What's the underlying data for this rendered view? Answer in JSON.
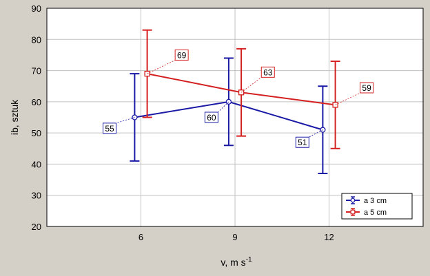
{
  "chart_data": {
    "type": "line",
    "x": [
      6,
      9,
      12
    ],
    "xlabel": "v, m s",
    "xlabel_sup": "-1",
    "ylabel": "ib, sztuk",
    "xlim": [
      3,
      15
    ],
    "ylim": [
      20,
      90
    ],
    "xticks": [
      6,
      9,
      12
    ],
    "yticks": [
      20,
      30,
      40,
      50,
      60,
      70,
      80,
      90
    ],
    "grid": true,
    "legend_position": "bottom-right",
    "series": [
      {
        "name": "a        3 cm",
        "color": "#1a1aa6",
        "marker": "circle",
        "x": [
          5.8,
          8.8,
          11.8
        ],
        "values": [
          55,
          60,
          51
        ],
        "lower": [
          41,
          46,
          37
        ],
        "upper": [
          69,
          74,
          65
        ],
        "labels": [
          "55",
          "60",
          "51"
        ],
        "label_offsets_data": [
          [
            -0.8,
            -3.5
          ],
          [
            -0.55,
            -5
          ],
          [
            -0.65,
            -4
          ]
        ]
      },
      {
        "name": "a        5 cm",
        "color": "#d42020",
        "marker": "square",
        "x": [
          6.2,
          9.2,
          12.2
        ],
        "values": [
          69,
          63,
          59
        ],
        "lower": [
          55,
          49,
          45
        ],
        "upper": [
          83,
          77,
          73
        ],
        "labels": [
          "69",
          "63",
          "59"
        ],
        "label_offsets_data": [
          [
            1.1,
            6
          ],
          [
            0.85,
            6.5
          ],
          [
            1.0,
            5.5
          ]
        ]
      }
    ]
  }
}
